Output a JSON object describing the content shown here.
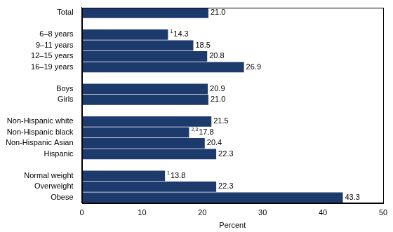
{
  "chart_data": {
    "type": "bar",
    "orientation": "horizontal",
    "categories": [
      "Total",
      null,
      "6–8 years",
      "9–11 years",
      "12–15 years",
      "16–19 years",
      null,
      "Boys",
      "Girls",
      null,
      "Non-Hispanic white",
      "Non-Hispanic black",
      "Non-Hispanic Asian",
      "Hispanic",
      null,
      "Normal weight",
      "Overweight",
      "Obese"
    ],
    "values": [
      21.0,
      null,
      14.3,
      18.5,
      20.8,
      26.9,
      null,
      20.9,
      21.0,
      null,
      21.5,
      17.8,
      20.4,
      22.3,
      null,
      13.8,
      22.3,
      43.3
    ],
    "value_labels": [
      "21.0",
      null,
      "14.3",
      "18.5",
      "20.8",
      "26.9",
      null,
      "20.9",
      "21.0",
      null,
      "21.5",
      "17.8",
      "20.4",
      "22.3",
      null,
      "13.8",
      "22.3",
      "43.3"
    ],
    "footnote_marks": [
      null,
      null,
      "1",
      null,
      null,
      null,
      null,
      null,
      null,
      null,
      null,
      "2,3",
      null,
      null,
      null,
      "1",
      null,
      null
    ],
    "data_labels": true,
    "color": "#1c3a6c",
    "x_label": "Percent",
    "xlim": [
      0,
      50
    ],
    "xticks": [
      0,
      10,
      20,
      30,
      40,
      50
    ],
    "grid": false
  }
}
